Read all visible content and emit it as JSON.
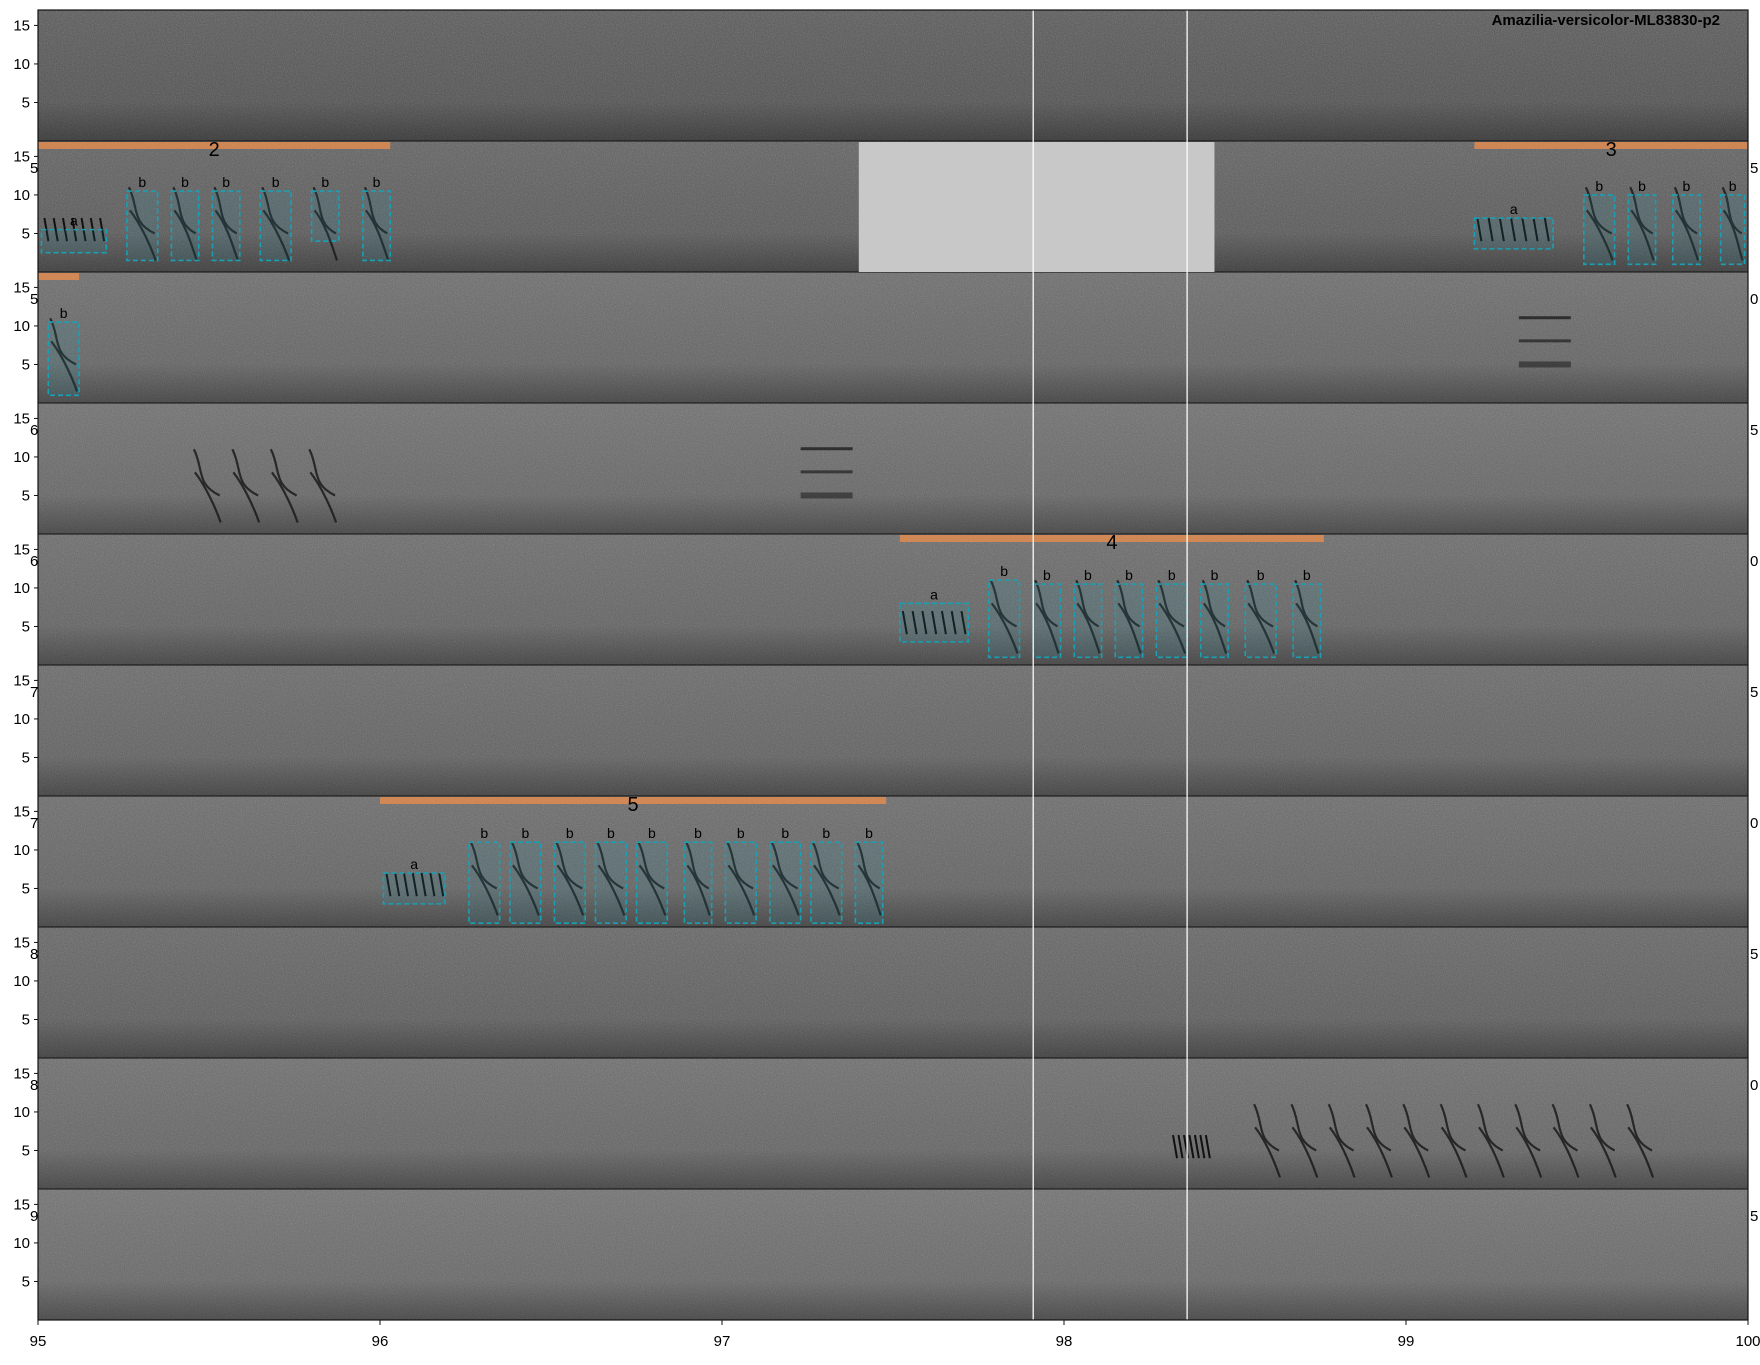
{
  "chart_data": {
    "type": "spectrogram",
    "title": "Amazilia-versicolor-ML83830-p2",
    "x_ticks": [
      "95",
      "96",
      "97",
      "98",
      "99",
      "100"
    ],
    "y_ticks": [
      "5",
      "10",
      "15"
    ],
    "xlim": [
      95,
      100
    ],
    "ylim": [
      0,
      17
    ],
    "grid": false,
    "panel_count": 10,
    "vertical_markers": [
      97.91,
      98.36
    ],
    "background_shades": [
      "#585858",
      "#606060",
      "#6b6b6b",
      "#6e6e6e",
      "#6a6a6a",
      "#686868",
      "#6a6a6a",
      "#646464",
      "#6c6c6c",
      "#707070"
    ],
    "blank_region": {
      "panel": 1,
      "x": [
        97.4,
        98.44
      ]
    },
    "edge_labels": [
      {
        "panel": 1,
        "left": "5",
        "right": "5"
      },
      {
        "panel": 2,
        "left": "5",
        "right": "0"
      },
      {
        "panel": 3,
        "left": "6",
        "right": "5"
      },
      {
        "panel": 4,
        "left": "6",
        "right": "0"
      },
      {
        "panel": 5,
        "left": "7",
        "right": "5"
      },
      {
        "panel": 6,
        "left": "7",
        "right": "0"
      },
      {
        "panel": 7,
        "left": "8",
        "right": "5"
      },
      {
        "panel": 8,
        "left": "8",
        "right": "0"
      },
      {
        "panel": 9,
        "left": "9",
        "right": "5"
      }
    ],
    "song_bars": [
      {
        "panel": 1,
        "x": [
          95.0,
          96.03
        ],
        "label": "2"
      },
      {
        "panel": 1,
        "x": [
          99.2,
          100.0
        ],
        "label": "3"
      },
      {
        "panel": 2,
        "x": [
          95.0,
          95.12
        ],
        "label": ""
      },
      {
        "panel": 4,
        "x": [
          97.52,
          98.76
        ],
        "label": "4"
      },
      {
        "panel": 6,
        "x": [
          96.0,
          97.48
        ],
        "label": "5"
      }
    ],
    "syllables": [
      {
        "panel": 1,
        "label": "a",
        "x": [
          95.01,
          95.2
        ],
        "y": [
          2.5,
          5.5
        ]
      },
      {
        "panel": 1,
        "label": "b",
        "x": [
          95.26,
          95.35
        ],
        "y": [
          1.5,
          10.5
        ]
      },
      {
        "panel": 1,
        "label": "b",
        "x": [
          95.39,
          95.47
        ],
        "y": [
          1.5,
          10.5
        ]
      },
      {
        "panel": 1,
        "label": "b",
        "x": [
          95.51,
          95.59
        ],
        "y": [
          1.5,
          10.5
        ]
      },
      {
        "panel": 1,
        "label": "b",
        "x": [
          95.65,
          95.74
        ],
        "y": [
          1.5,
          10.5
        ]
      },
      {
        "panel": 1,
        "label": "b",
        "x": [
          95.8,
          95.88
        ],
        "y": [
          4.0,
          10.5
        ]
      },
      {
        "panel": 1,
        "label": "b",
        "x": [
          95.95,
          96.03
        ],
        "y": [
          1.5,
          10.5
        ]
      },
      {
        "panel": 1,
        "label": "a",
        "x": [
          99.2,
          99.43
        ],
        "y": [
          3.0,
          7.0
        ]
      },
      {
        "panel": 1,
        "label": "b",
        "x": [
          99.52,
          99.61
        ],
        "y": [
          1.0,
          10.0
        ]
      },
      {
        "panel": 1,
        "label": "b",
        "x": [
          99.65,
          99.73
        ],
        "y": [
          1.0,
          10.0
        ]
      },
      {
        "panel": 1,
        "label": "b",
        "x": [
          99.78,
          99.86
        ],
        "y": [
          1.0,
          10.0
        ]
      },
      {
        "panel": 1,
        "label": "b",
        "x": [
          99.92,
          99.99
        ],
        "y": [
          1.0,
          10.0
        ]
      },
      {
        "panel": 2,
        "label": "b",
        "x": [
          95.03,
          95.12
        ],
        "y": [
          1.0,
          10.5
        ]
      },
      {
        "panel": 4,
        "label": "a",
        "x": [
          97.52,
          97.72
        ],
        "y": [
          3.0,
          8.0
        ]
      },
      {
        "panel": 4,
        "label": "b",
        "x": [
          97.78,
          97.87
        ],
        "y": [
          1.0,
          11.0
        ]
      },
      {
        "panel": 4,
        "label": "b",
        "x": [
          97.91,
          97.99
        ],
        "y": [
          1.0,
          10.5
        ]
      },
      {
        "panel": 4,
        "label": "b",
        "x": [
          98.03,
          98.11
        ],
        "y": [
          1.0,
          10.5
        ]
      },
      {
        "panel": 4,
        "label": "b",
        "x": [
          98.15,
          98.23
        ],
        "y": [
          1.0,
          10.5
        ]
      },
      {
        "panel": 4,
        "label": "b",
        "x": [
          98.27,
          98.36
        ],
        "y": [
          1.0,
          10.5
        ]
      },
      {
        "panel": 4,
        "label": "b",
        "x": [
          98.4,
          98.48
        ],
        "y": [
          1.0,
          10.5
        ]
      },
      {
        "panel": 4,
        "label": "b",
        "x": [
          98.53,
          98.62
        ],
        "y": [
          1.0,
          10.5
        ]
      },
      {
        "panel": 4,
        "label": "b",
        "x": [
          98.67,
          98.75
        ],
        "y": [
          1.0,
          10.5
        ]
      },
      {
        "panel": 6,
        "label": "a",
        "x": [
          96.01,
          96.19
        ],
        "y": [
          3.0,
          7.0
        ]
      },
      {
        "panel": 6,
        "label": "b",
        "x": [
          96.26,
          96.35
        ],
        "y": [
          0.5,
          11.0
        ]
      },
      {
        "panel": 6,
        "label": "b",
        "x": [
          96.38,
          96.47
        ],
        "y": [
          0.5,
          11.0
        ]
      },
      {
        "panel": 6,
        "label": "b",
        "x": [
          96.51,
          96.6
        ],
        "y": [
          0.5,
          11.0
        ]
      },
      {
        "panel": 6,
        "label": "b",
        "x": [
          96.63,
          96.72
        ],
        "y": [
          0.5,
          11.0
        ]
      },
      {
        "panel": 6,
        "label": "b",
        "x": [
          96.75,
          96.84
        ],
        "y": [
          0.5,
          11.0
        ]
      },
      {
        "panel": 6,
        "label": "b",
        "x": [
          96.89,
          96.97
        ],
        "y": [
          0.5,
          11.0
        ]
      },
      {
        "panel": 6,
        "label": "b",
        "x": [
          97.01,
          97.1
        ],
        "y": [
          0.5,
          11.0
        ]
      },
      {
        "panel": 6,
        "label": "b",
        "x": [
          97.14,
          97.23
        ],
        "y": [
          0.5,
          11.0
        ]
      },
      {
        "panel": 6,
        "label": "b",
        "x": [
          97.26,
          97.35
        ],
        "y": [
          0.5,
          11.0
        ]
      },
      {
        "panel": 6,
        "label": "b",
        "x": [
          97.39,
          97.47
        ],
        "y": [
          0.5,
          11.0
        ]
      }
    ],
    "unboxed_calls": [
      {
        "panel": 3,
        "x": [
          95.45,
          95.9
        ],
        "count": 4,
        "style": "b"
      },
      {
        "panel": 3,
        "x": [
          97.23,
          97.42
        ],
        "count": 1,
        "style": "bands"
      },
      {
        "panel": 2,
        "x": [
          99.33,
          99.52
        ],
        "count": 1,
        "style": "bands"
      },
      {
        "panel": 8,
        "x": [
          98.31,
          98.45
        ],
        "count": 1,
        "style": "a"
      },
      {
        "panel": 8,
        "x": [
          98.55,
          99.75
        ],
        "count": 11,
        "style": "b"
      }
    ],
    "colors": {
      "song_bar": "#d98a52",
      "syllable_box": "#1aa0b4",
      "marker_line": "#ffffff",
      "blank_fill": "#c8c8c8"
    }
  }
}
